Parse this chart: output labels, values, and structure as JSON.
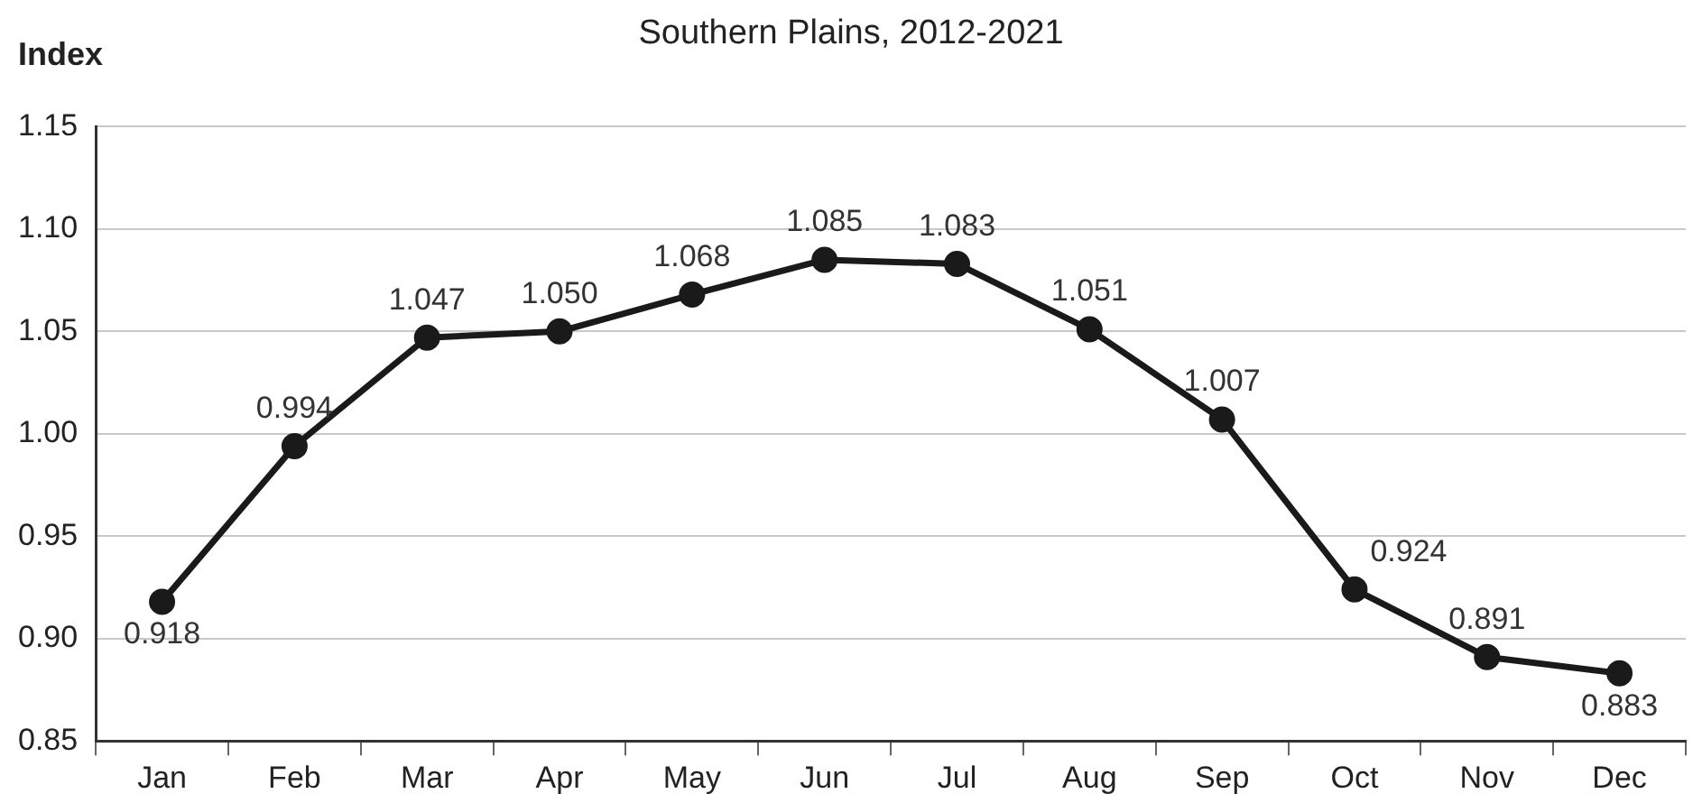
{
  "chart_data": {
    "type": "line",
    "subtitle": "Southern Plains, 2012-2021",
    "ylabel": "Index",
    "categories": [
      "Jan",
      "Feb",
      "Mar",
      "Apr",
      "May",
      "Jun",
      "Jul",
      "Aug",
      "Sep",
      "Oct",
      "Nov",
      "Dec"
    ],
    "series": [
      {
        "color": "#1a1a1a",
        "values": [
          0.918,
          0.994,
          1.047,
          1.05,
          1.068,
          1.085,
          1.083,
          1.051,
          1.007,
          0.924,
          0.891,
          0.883
        ],
        "value_labels": [
          "0.918",
          "0.994",
          "1.047",
          "1.050",
          "1.068",
          "1.085",
          "1.083",
          "1.051",
          "1.007",
          "0.924",
          "0.891",
          "0.883"
        ]
      }
    ],
    "ylim": [
      0.85,
      1.15
    ],
    "yticks": [
      {
        "value": 0.85,
        "label": "0.85"
      },
      {
        "value": 0.9,
        "label": "0.90"
      },
      {
        "value": 0.95,
        "label": "0.95"
      },
      {
        "value": 1.0,
        "label": "1.00"
      },
      {
        "value": 1.05,
        "label": "1.05"
      },
      {
        "value": 1.1,
        "label": "1.10"
      },
      {
        "value": 1.15,
        "label": "1.15"
      }
    ],
    "grid": "y",
    "legend": false,
    "marker": "circle",
    "line_style": "solid"
  }
}
